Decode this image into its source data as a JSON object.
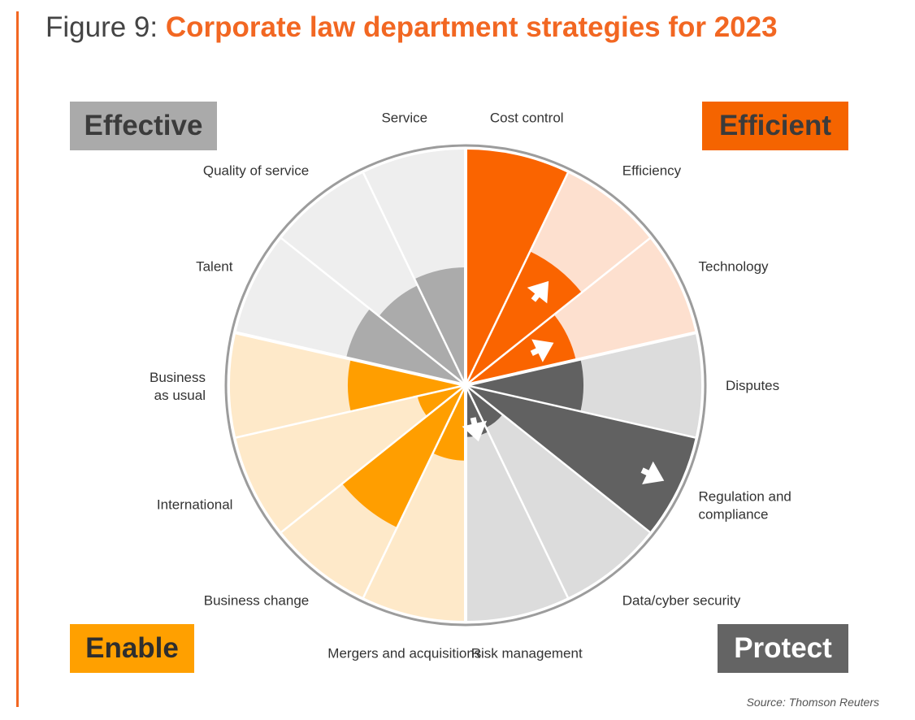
{
  "title": {
    "prefix": "Figure 9:",
    "main": "Corporate law department strategies for 2023"
  },
  "colors": {
    "accent": "#f26722",
    "efficient": "#fa6400",
    "efficient_light": "#fde0cf",
    "protect": "#616161",
    "protect_light": "#dcdcdc",
    "enable": "#ff9e00",
    "enable_light": "#fee9c9",
    "effective": "#ababab",
    "effective_light": "#eeeeee",
    "divider": "#ffffff",
    "rim": "#9c9c9c",
    "label_text": "#333333",
    "arrow": "#ffffff"
  },
  "quadrants": {
    "effective": {
      "label": "Effective",
      "bg": "#aaaaaa",
      "text": "#3b3b3b"
    },
    "efficient": {
      "label": "Efficient",
      "bg": "#f56400",
      "text": "#3b3b3b"
    },
    "enable": {
      "label": "Enable",
      "bg": "#ffa000",
      "text": "#2e2e2e"
    },
    "protect": {
      "label": "Protect",
      "bg": "#646464",
      "text": "#ffffff"
    }
  },
  "chart_data": {
    "type": "polar-area",
    "title": "Corporate law department strategies for 2023",
    "scale_max": 1.0,
    "categories": [
      {
        "label": "Cost control",
        "group": "Efficient",
        "value": 1.0,
        "trend": ""
      },
      {
        "label": "Efficiency",
        "group": "Efficient",
        "value": 0.63,
        "trend": "down"
      },
      {
        "label": "Technology",
        "group": "Efficient",
        "value": 0.48,
        "trend": "down"
      },
      {
        "label": "Disputes",
        "group": "Protect",
        "value": 0.5,
        "trend": ""
      },
      {
        "label": "Regulation and\ncompliance",
        "group": "Protect",
        "value": 1.0,
        "trend": "down"
      },
      {
        "label": "Data/cyber security",
        "group": "Protect",
        "value": 0.2,
        "trend": ""
      },
      {
        "label": "Risk management",
        "group": "Protect",
        "value": 0.22,
        "trend": "down"
      },
      {
        "label": "Mergers and acquisitions",
        "group": "Enable",
        "value": 0.32,
        "trend": ""
      },
      {
        "label": "Business change",
        "group": "Enable",
        "value": 0.67,
        "trend": ""
      },
      {
        "label": "International",
        "group": "Enable",
        "value": 0.21,
        "trend": ""
      },
      {
        "label": "Business\nas usual",
        "group": "Enable",
        "value": 0.5,
        "trend": ""
      },
      {
        "label": "Talent",
        "group": "Effective",
        "value": 0.52,
        "trend": ""
      },
      {
        "label": "Quality of service",
        "group": "Effective",
        "value": 0.47,
        "trend": ""
      },
      {
        "label": "Service",
        "group": "Effective",
        "value": 0.5,
        "trend": ""
      }
    ],
    "legend": [
      "Effective",
      "Efficient",
      "Enable",
      "Protect"
    ],
    "source": "Source: Thomson Reuters"
  }
}
